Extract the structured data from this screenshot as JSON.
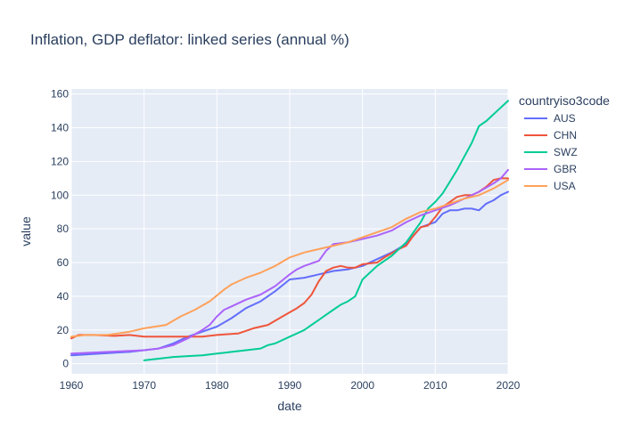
{
  "chart_data": {
    "type": "line",
    "title": "Inflation, GDP deflator: linked series (annual %)",
    "xlabel": "date",
    "ylabel": "value",
    "xlim": [
      1960,
      2020
    ],
    "ylim": [
      -6,
      163
    ],
    "xticks": [
      1960,
      1970,
      1980,
      1990,
      2000,
      2010,
      2020
    ],
    "yticks": [
      0,
      20,
      40,
      60,
      80,
      100,
      120,
      140,
      160
    ],
    "grid": true,
    "legend": {
      "title": "countryiso3code",
      "placement": "right"
    },
    "series": [
      {
        "name": "AUS",
        "color": "#636efa",
        "x": [
          1960,
          1962,
          1964,
          1966,
          1968,
          1970,
          1972,
          1974,
          1976,
          1978,
          1980,
          1982,
          1984,
          1986,
          1988,
          1990,
          1992,
          1994,
          1996,
          1998,
          2000,
          2002,
          2004,
          2006,
          2008,
          2010,
          2011,
          2012,
          2013,
          2014,
          2015,
          2016,
          2017,
          2018,
          2019,
          2020
        ],
        "y": [
          5,
          5.5,
          6,
          6.5,
          7,
          8,
          9,
          12,
          16,
          19,
          22,
          27,
          33,
          37,
          43,
          50,
          51,
          53,
          55,
          56,
          58,
          62,
          66,
          71,
          81,
          84,
          89,
          91,
          91,
          92,
          92,
          91,
          95,
          97,
          100,
          102
        ]
      },
      {
        "name": "CHN",
        "color": "#ef553b",
        "x": [
          1960,
          1961,
          1963,
          1966,
          1968,
          1970,
          1975,
          1978,
          1980,
          1983,
          1985,
          1987,
          1989,
          1991,
          1992,
          1993,
          1994,
          1995,
          1996,
          1997,
          1998,
          1999,
          2000,
          2002,
          2003,
          2005,
          2006,
          2007,
          2008,
          2009,
          2010,
          2011,
          2012,
          2013,
          2014,
          2015,
          2016,
          2017,
          2018,
          2019,
          2020
        ],
        "y": [
          15,
          17,
          17,
          16.5,
          17,
          16,
          16,
          16,
          17,
          18,
          21,
          23,
          28,
          33,
          36,
          41,
          49,
          55,
          57,
          58,
          57,
          57,
          59,
          60,
          63,
          68,
          70,
          76,
          81,
          82,
          87,
          93,
          96,
          99,
          100,
          100,
          102,
          105,
          109,
          110,
          110
        ]
      },
      {
        "name": "SWZ",
        "color": "#00cc96",
        "x": [
          1970,
          1972,
          1974,
          1976,
          1978,
          1980,
          1982,
          1984,
          1986,
          1987,
          1988,
          1989,
          1990,
          1991,
          1992,
          1993,
          1994,
          1995,
          1996,
          1997,
          1998,
          1999,
          2000,
          2002,
          2004,
          2006,
          2008,
          2009,
          2010,
          2011,
          2012,
          2013,
          2014,
          2015,
          2016,
          2017,
          2018,
          2019,
          2020
        ],
        "y": [
          2,
          3,
          4,
          4.5,
          5,
          6,
          7,
          8,
          9,
          11,
          12,
          14,
          16,
          18,
          20,
          23,
          26,
          29,
          32,
          35,
          37,
          40,
          50,
          58,
          64,
          72,
          84,
          92,
          96,
          101,
          108,
          115,
          123,
          131,
          141,
          144,
          148,
          152,
          156
        ]
      },
      {
        "name": "GBR",
        "color": "#ab63fa",
        "x": [
          1960,
          1965,
          1970,
          1972,
          1974,
          1976,
          1978,
          1979,
          1980,
          1981,
          1982,
          1984,
          1986,
          1988,
          1990,
          1991,
          1992,
          1994,
          1995,
          1996,
          1998,
          2000,
          2002,
          2004,
          2006,
          2008,
          2010,
          2012,
          2014,
          2016,
          2018,
          2019,
          2020
        ],
        "y": [
          6,
          7,
          8,
          9,
          11,
          15,
          20,
          23,
          28,
          32,
          34,
          38,
          41,
          46,
          53,
          56,
          58,
          61,
          67,
          71,
          72,
          74,
          76,
          79,
          84,
          88,
          91,
          94,
          98,
          102,
          107,
          110,
          115
        ]
      },
      {
        "name": "USA",
        "color": "#ffa15a",
        "x": [
          1960,
          1962,
          1965,
          1968,
          1970,
          1973,
          1975,
          1977,
          1979,
          1981,
          1982,
          1984,
          1986,
          1988,
          1990,
          1992,
          1994,
          1996,
          1998,
          2000,
          2002,
          2004,
          2006,
          2008,
          2010,
          2012,
          2014,
          2016,
          2018,
          2020
        ],
        "y": [
          16,
          17,
          17,
          19,
          21,
          23,
          28,
          32,
          37,
          44,
          47,
          51,
          54,
          58,
          63,
          66,
          68,
          70,
          72,
          75,
          78,
          81,
          86,
          90,
          92,
          95,
          98,
          100,
          104,
          109
        ]
      }
    ]
  }
}
